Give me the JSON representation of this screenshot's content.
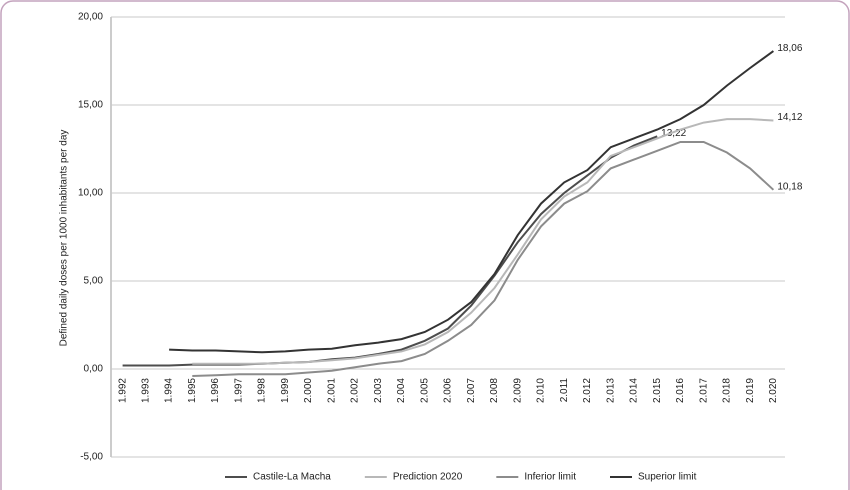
{
  "chart_data": {
    "type": "line",
    "y_label": "Defined daily doses per 1000 inhabitants per day",
    "categories": [
      "1.992",
      "1.993",
      "1.994",
      "1.995",
      "1.996",
      "1.997",
      "1.998",
      "1.999",
      "2.000",
      "2.001",
      "2.002",
      "2.003",
      "2.004",
      "2.005",
      "2.006",
      "2.007",
      "2.008",
      "2.009",
      "2.010",
      "2.011",
      "2.012",
      "2.013",
      "2.014",
      "2.015",
      "2.016",
      "2.017",
      "2.018",
      "2.019",
      "2.020"
    ],
    "ylim": [
      -5,
      20
    ],
    "yticks": [
      {
        "value": -5,
        "label": "-5,00"
      },
      {
        "value": 0,
        "label": "0,00"
      },
      {
        "value": 5,
        "label": "5,00"
      },
      {
        "value": 10,
        "label": "10,00"
      },
      {
        "value": 15,
        "label": "15,00"
      },
      {
        "value": 20,
        "label": "20,00"
      }
    ],
    "grid": true,
    "legend": "bottom",
    "series": [
      {
        "name": "Castile-La Macha",
        "color": "#4d4d4d",
        "values": [
          0.2,
          0.2,
          0.2,
          0.25,
          0.25,
          0.25,
          0.3,
          0.35,
          0.4,
          0.55,
          0.65,
          0.85,
          1.1,
          1.6,
          2.3,
          3.6,
          5.3,
          7.2,
          8.8,
          10.0,
          11.0,
          12.0,
          12.7,
          13.22,
          null,
          null,
          null,
          null,
          null
        ],
        "value_labels": [
          null,
          null,
          null,
          null,
          null,
          null,
          null,
          null,
          null,
          null,
          null,
          null,
          null,
          null,
          null,
          null,
          null,
          null,
          null,
          null,
          null,
          null,
          null,
          "13,22",
          null,
          null,
          null,
          null,
          null
        ]
      },
      {
        "name": "Prediction 2020",
        "color": "#b8b8b8",
        "values": [
          null,
          null,
          null,
          0.3,
          0.3,
          0.3,
          0.3,
          0.35,
          0.4,
          0.5,
          0.6,
          0.8,
          1.0,
          1.4,
          2.1,
          3.2,
          4.6,
          6.5,
          8.5,
          9.8,
          10.6,
          12.1,
          12.6,
          13.1,
          13.6,
          14.0,
          14.2,
          14.2,
          14.12
        ],
        "value_labels": [
          null,
          null,
          null,
          null,
          null,
          null,
          null,
          null,
          null,
          null,
          null,
          null,
          null,
          null,
          null,
          null,
          null,
          null,
          null,
          null,
          null,
          null,
          null,
          null,
          null,
          null,
          null,
          null,
          "14,12"
        ]
      },
      {
        "name": "Inferior limit",
        "color": "#8c8c8c",
        "values": [
          null,
          null,
          null,
          -0.4,
          -0.35,
          -0.3,
          -0.3,
          -0.3,
          -0.2,
          -0.1,
          0.1,
          0.3,
          0.45,
          0.85,
          1.6,
          2.5,
          3.9,
          6.2,
          8.1,
          9.4,
          10.1,
          11.4,
          11.9,
          12.4,
          12.9,
          12.9,
          12.3,
          11.4,
          10.18
        ],
        "value_labels": [
          null,
          null,
          null,
          null,
          null,
          null,
          null,
          null,
          null,
          null,
          null,
          null,
          null,
          null,
          null,
          null,
          null,
          null,
          null,
          null,
          null,
          null,
          null,
          null,
          null,
          null,
          null,
          null,
          "10,18"
        ]
      },
      {
        "name": "Superior limit",
        "color": "#333333",
        "values": [
          null,
          null,
          1.1,
          1.05,
          1.05,
          1.0,
          0.95,
          1.0,
          1.1,
          1.15,
          1.35,
          1.5,
          1.7,
          2.1,
          2.8,
          3.8,
          5.4,
          7.6,
          9.4,
          10.6,
          11.3,
          12.6,
          13.1,
          13.6,
          14.2,
          15.0,
          16.1,
          17.1,
          18.06
        ],
        "value_labels": [
          null,
          null,
          null,
          null,
          null,
          null,
          null,
          null,
          null,
          null,
          null,
          null,
          null,
          null,
          null,
          null,
          null,
          null,
          null,
          null,
          null,
          null,
          null,
          null,
          null,
          null,
          null,
          null,
          "18,06"
        ]
      }
    ]
  }
}
